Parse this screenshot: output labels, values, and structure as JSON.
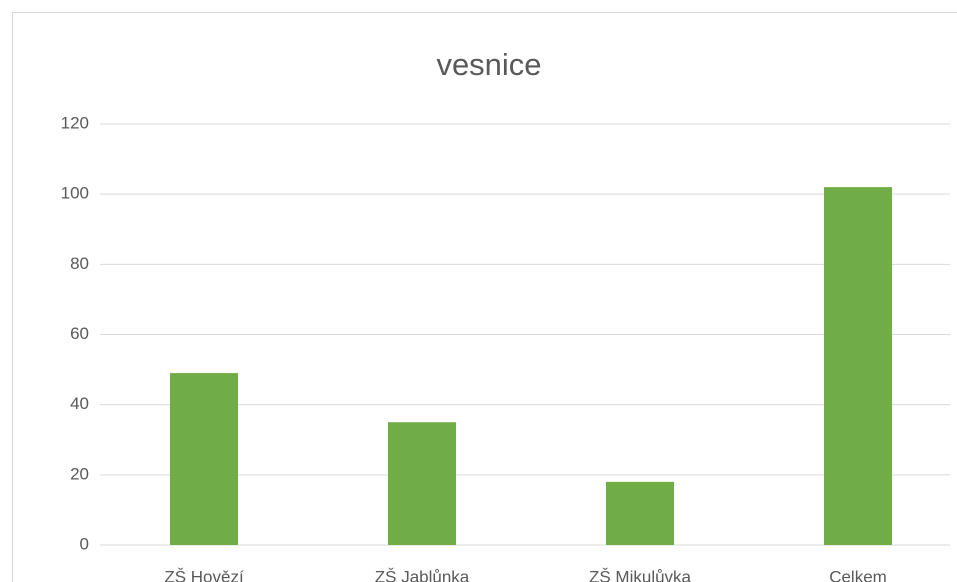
{
  "chart_data": {
    "type": "bar",
    "title": "vesnice",
    "categories": [
      "ZŠ Hovězí",
      "ZŠ Jablůnka",
      "ZŠ Mikulůvka",
      "Celkem"
    ],
    "values": [
      49,
      35,
      18,
      102
    ],
    "color": "#70ad47",
    "ylim": [
      0,
      120
    ],
    "yticks": [
      0,
      20,
      40,
      60,
      80,
      100,
      120
    ],
    "grid": true
  }
}
